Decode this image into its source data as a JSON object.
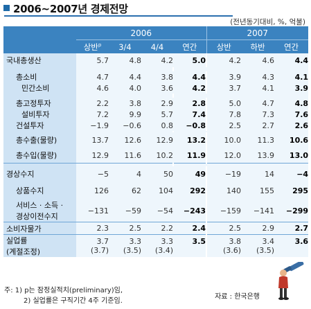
{
  "title": "2006~2007년 경제전망",
  "unit_note": "(전년동기대비, %, 억불)",
  "header": {
    "year1": "2006",
    "year2": "2007",
    "sub_2006": [
      "상반",
      "3/4",
      "4/4",
      "연간"
    ],
    "sub_2006_sup": "p",
    "sub_2007": [
      "상반",
      "하반",
      "연간"
    ]
  },
  "rows": [
    {
      "label": "국내총생산",
      "values": [
        "5.7",
        "4.8",
        "4.2",
        "5.0",
        "4.2",
        "4.6",
        "4.4"
      ]
    },
    {
      "label": "총소비",
      "values": [
        "4.7",
        "4.4",
        "3.8",
        "4.4",
        "3.9",
        "4.3",
        "4.1"
      ]
    },
    {
      "label": "민간소비",
      "values": [
        "4.6",
        "4.0",
        "3.6",
        "4.2",
        "3.7",
        "4.1",
        "3.9"
      ]
    },
    {
      "label": "총고정투자",
      "values": [
        "2.2",
        "3.8",
        "2.9",
        "2.8",
        "5.0",
        "4.7",
        "4.8"
      ]
    },
    {
      "label": "설비투자",
      "values": [
        "7.2",
        "9.9",
        "5.7",
        "7.4",
        "7.8",
        "7.3",
        "7.6"
      ]
    },
    {
      "label": "건설투자",
      "values": [
        "-1.9",
        "-0.6",
        "0.8",
        "-0.8",
        "2.5",
        "2.7",
        "2.6"
      ]
    },
    {
      "label": "총수출(물량)",
      "values": [
        "13.7",
        "12.6",
        "12.9",
        "13.2",
        "10.0",
        "11.3",
        "10.6"
      ]
    },
    {
      "label": "총수입(물량)",
      "values": [
        "12.9",
        "11.6",
        "10.2",
        "11.9",
        "12.0",
        "13.9",
        "13.0"
      ]
    },
    {
      "label": "경상수지",
      "values": [
        "-5",
        "4",
        "50",
        "49",
        "-19",
        "14",
        "-4"
      ]
    },
    {
      "label": "상품수지",
      "values": [
        "126",
        "62",
        "104",
        "292",
        "140",
        "155",
        "295"
      ]
    },
    {
      "label_line1": "서비스 · 소득 ·",
      "label_line2": "경상이전수지",
      "values": [
        "-131",
        "-59",
        "-54",
        "-243",
        "-159",
        "-141",
        "-299"
      ]
    },
    {
      "label": "소비자물가",
      "values": [
        "2.3",
        "2.5",
        "2.2",
        "2.4",
        "2.5",
        "2.9",
        "2.7"
      ]
    },
    {
      "label_line1": "실업률",
      "label_line2": "(계절조정)",
      "values": [
        "3.7",
        "3.3",
        "3.3",
        "3.5",
        "3.8",
        "3.4",
        "3.6"
      ],
      "values2": [
        "(3.7)",
        "(3.5)",
        "(3.4)",
        "",
        "(3.6)",
        "(3.5)",
        ""
      ]
    }
  ],
  "footnotes": {
    "line1": "주: 1) p는 잠정실적치(preliminary)임,",
    "line2": "2) 실업률은 구직기간 4주 기준임."
  },
  "source": "자료 : 한국은행",
  "icon_name": "telescope-figure-icon",
  "colors": {
    "header": "#3b83c0",
    "label_cell": "#cfe3f4",
    "value_cell": "#eef6fc",
    "title_square": "#1e6aa8"
  }
}
